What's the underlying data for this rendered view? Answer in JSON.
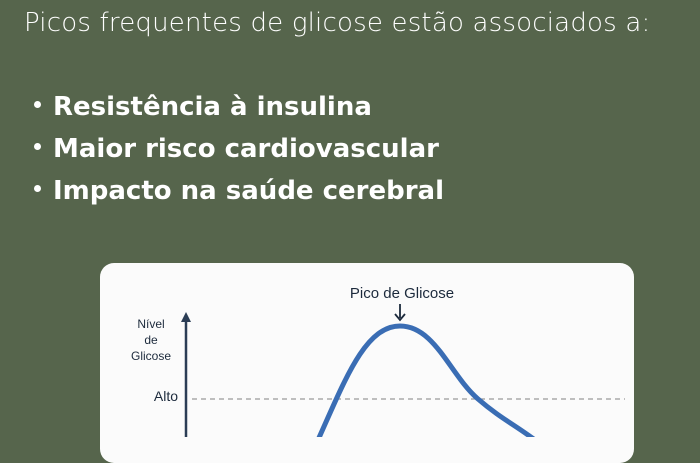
{
  "heading": "Picos frequentes de glicose estão associados a:",
  "bullets": [
    "Resistência à insulina",
    "Maior risco cardiovascular",
    "Impacto na saúde cerebral"
  ],
  "diagram": {
    "peak_label": "Pico de Glicose",
    "y_axis_label": [
      "Nível",
      "de",
      "Glicose"
    ],
    "threshold_label": "Alto",
    "colors": {
      "curve": "#3a6db4",
      "axis": "#2b3d55",
      "threshold": "#9a9a9a",
      "background": "#56654c",
      "card": "#fbfbfb"
    }
  }
}
